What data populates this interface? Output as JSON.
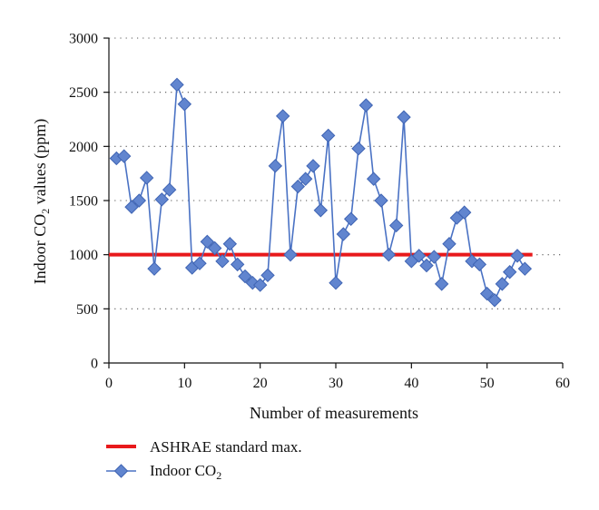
{
  "chart_data": {
    "type": "line",
    "xlabel": "Number of measurements",
    "ylabel_main": "Indoor CO",
    "ylabel_sub": "2",
    "ylabel_tail": " values (ppm)",
    "xlim": [
      0,
      60
    ],
    "ylim": [
      0,
      3000
    ],
    "x_ticks": [
      0,
      10,
      20,
      30,
      40,
      50,
      60
    ],
    "y_ticks": [
      0,
      500,
      1000,
      1500,
      2000,
      2500,
      3000
    ],
    "x_tick_labels": [
      "0",
      "10",
      "20",
      "30",
      "40",
      "50",
      "60"
    ],
    "y_tick_labels": [
      "0",
      "500",
      "1000",
      "1500",
      "2000",
      "2500",
      "3000"
    ],
    "grid_y": true,
    "legend_position": "bottom-left",
    "series": [
      {
        "name": "ASHRAE standard max.",
        "color": "#e8191b",
        "marker": "none",
        "x": [
          0,
          56
        ],
        "values": [
          1000,
          1000
        ]
      },
      {
        "name": "Indoor CO",
        "name_sub": "2",
        "color": "#4a72c4",
        "marker": "diamond",
        "x": [
          1,
          2,
          3,
          4,
          5,
          6,
          7,
          8,
          9,
          10,
          11,
          12,
          13,
          14,
          15,
          16,
          17,
          18,
          19,
          20,
          21,
          22,
          23,
          24,
          25,
          26,
          27,
          28,
          29,
          30,
          31,
          32,
          33,
          34,
          35,
          36,
          37,
          38,
          39,
          40,
          41,
          42,
          43,
          44,
          45,
          46,
          47,
          48,
          49,
          50,
          51,
          52,
          53,
          54,
          55
        ],
        "values": [
          1890,
          1910,
          1440,
          1500,
          1710,
          870,
          1510,
          1600,
          2570,
          2390,
          880,
          920,
          1120,
          1060,
          940,
          1100,
          910,
          800,
          740,
          720,
          810,
          1820,
          2280,
          1000,
          1630,
          1700,
          1820,
          1410,
          2100,
          740,
          1190,
          1330,
          1980,
          2380,
          1700,
          1500,
          1000,
          1270,
          2270,
          940,
          990,
          900,
          980,
          730,
          1100,
          1340,
          1390,
          940,
          910,
          640,
          580,
          730,
          840,
          990,
          870
        ]
      }
    ]
  }
}
